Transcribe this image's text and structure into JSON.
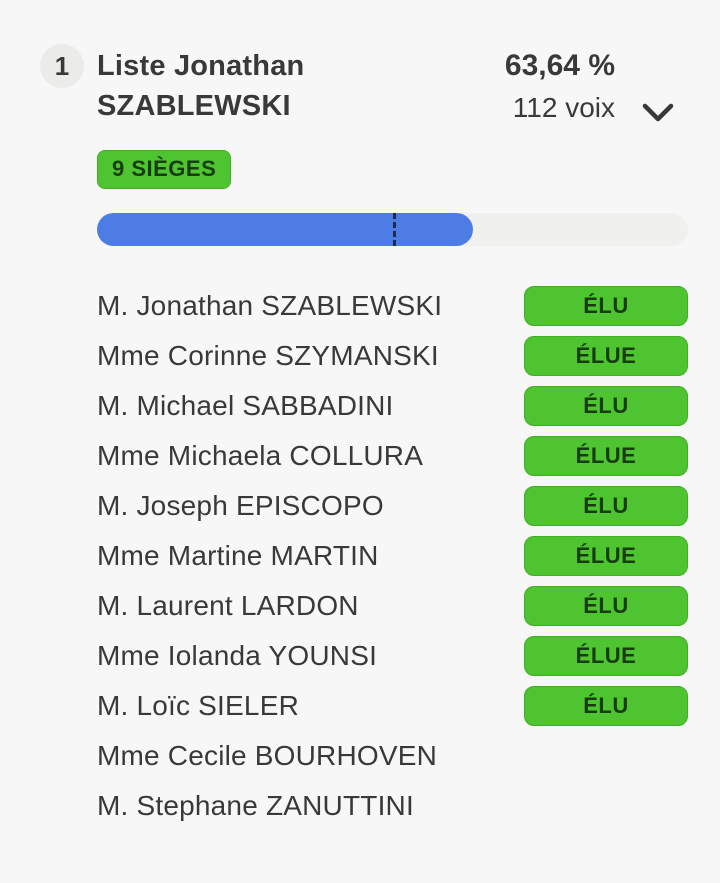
{
  "header": {
    "rank": "1",
    "list_name": "Liste Jonathan SZABLEWSKI",
    "percentage": "63,64 %",
    "votes": "112 voix",
    "seats_label": "9 SIÈGES"
  },
  "icons": {
    "expand": "chevron-down"
  },
  "progress": {
    "percent": 63.64,
    "majority_threshold_percent": 50
  },
  "candidates": [
    {
      "name": "M. Jonathan SZABLEWSKI",
      "badge": "ÉLU"
    },
    {
      "name": "Mme Corinne SZYMANSKI",
      "badge": "ÉLUE"
    },
    {
      "name": "M. Michael SABBADINI",
      "badge": "ÉLU"
    },
    {
      "name": "Mme Michaela COLLURA",
      "badge": "ÉLUE"
    },
    {
      "name": "M. Joseph EPISCOPO",
      "badge": "ÉLU"
    },
    {
      "name": "Mme Martine MARTIN",
      "badge": "ÉLUE"
    },
    {
      "name": "M. Laurent LARDON",
      "badge": "ÉLU"
    },
    {
      "name": "Mme Iolanda YOUNSI",
      "badge": "ÉLUE"
    },
    {
      "name": "M. Loïc SIELER",
      "badge": "ÉLU"
    },
    {
      "name": "Mme Cecile BOURHOVEN",
      "badge": null
    },
    {
      "name": "M. Stephane ZANUTTINI",
      "badge": null
    }
  ],
  "colors": {
    "accent_green": "#4ec431",
    "accent_blue": "#4d7de4",
    "threshold_navy": "#1c2c50",
    "text_dark": "#3a3937",
    "badge_text": "#173d0e",
    "track_gray": "#f0f0ef",
    "background": "#f7f7f7"
  }
}
